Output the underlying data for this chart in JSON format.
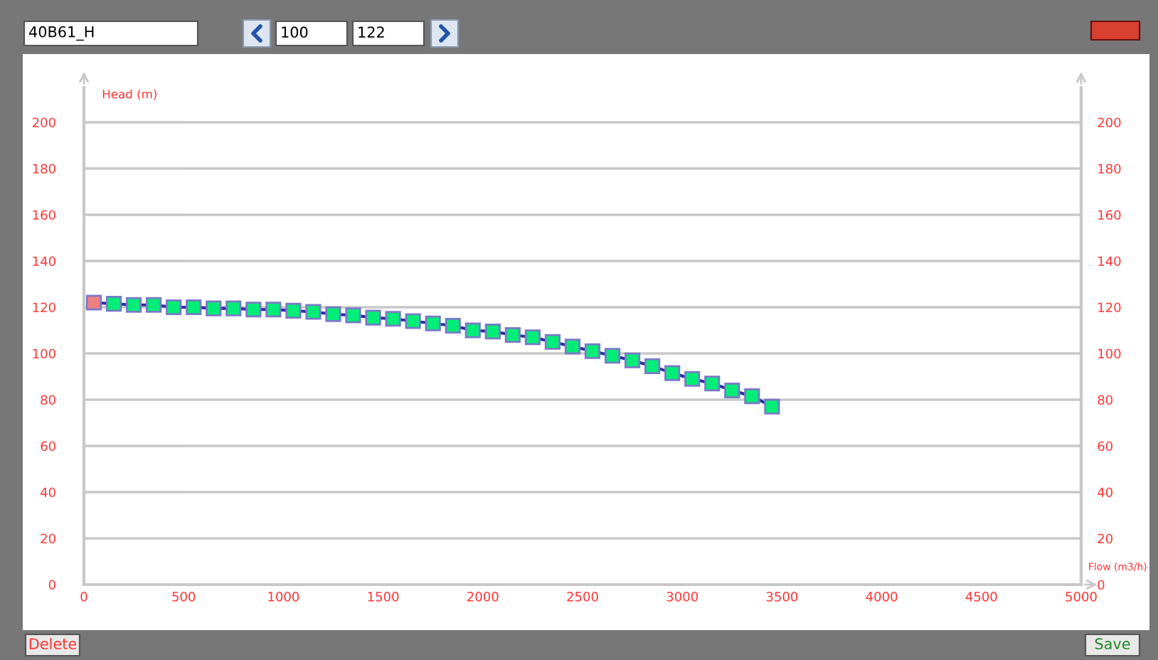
{
  "chart_data": {
    "type": "line",
    "title": "40B61_H",
    "xlabel": "Flow (m3/h)",
    "ylabel": "Head (m)",
    "x": [
      50,
      150,
      250,
      350,
      450,
      550,
      650,
      750,
      850,
      950,
      1050,
      1150,
      1250,
      1350,
      1450,
      1550,
      1650,
      1750,
      1850,
      1950,
      2050,
      2150,
      2250,
      2350,
      2450,
      2550,
      2650,
      2750,
      2850,
      2950,
      3050,
      3150,
      3250,
      3350,
      3450
    ],
    "series": [
      {
        "color": "#2e2e9e",
        "colors": [
          "#f08080",
          "#00ee77",
          "#00ee77",
          "#00ee77",
          "#00ee77",
          "#00ee77",
          "#00ee77",
          "#00ee77",
          "#00ee77",
          "#00ee77",
          "#00ee77",
          "#00ee77",
          "#00ee77",
          "#00ee77",
          "#00ee77",
          "#00ee77",
          "#00ee77",
          "#00ee77",
          "#00ee77",
          "#00ee77",
          "#00ee77",
          "#00ee77",
          "#00ee77",
          "#00ee77",
          "#00ee77",
          "#00ee77",
          "#00ee77",
          "#00ee77",
          "#00ee77",
          "#00ee77",
          "#00ee77",
          "#00ee77",
          "#00ee77",
          "#00ee77",
          "#00ee77"
        ],
        "values": [
          122,
          121.5,
          121,
          121,
          120,
          120,
          119.5,
          119.5,
          119,
          119,
          118.5,
          118,
          117,
          116.5,
          115.5,
          115,
          114,
          113,
          112,
          110,
          109.5,
          108,
          107,
          105,
          103,
          101,
          99,
          97,
          94.5,
          91.5,
          89,
          87,
          84,
          81.5,
          77
        ]
      }
    ],
    "xlim": [
      0,
      5000
    ],
    "xticks": [
      0,
      500,
      1000,
      1500,
      2000,
      2500,
      3000,
      3500,
      4000,
      4500,
      5000
    ],
    "ylim": [
      0,
      215
    ],
    "yticks": [
      0,
      20,
      40,
      60,
      80,
      100,
      120,
      140,
      160,
      180,
      200
    ],
    "y2lim": [
      0,
      215
    ],
    "y2ticks": [
      0,
      20,
      40,
      60,
      80,
      100,
      120,
      140,
      160,
      180,
      200
    ],
    "grid": "y",
    "marker": "square",
    "line_style": "solid",
    "annotations": [
      "100",
      "122",
      "Delete",
      "Save"
    ]
  }
}
